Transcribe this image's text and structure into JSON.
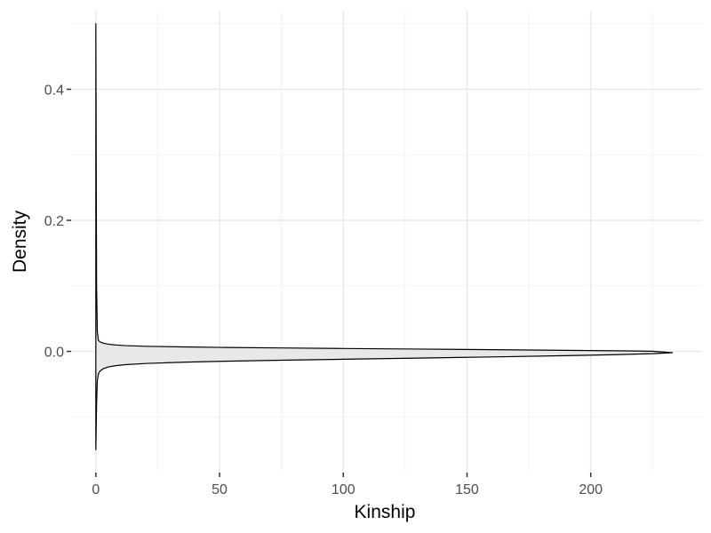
{
  "chart_data": {
    "type": "area",
    "title": "",
    "xlabel": "Kinship",
    "ylabel": "Density",
    "xlim": [
      -10,
      245
    ],
    "ylim": [
      -0.185,
      0.52
    ],
    "x_ticks": [
      0,
      50,
      100,
      150,
      200
    ],
    "y_ticks": [
      0.0,
      0.2,
      0.4
    ],
    "grid": true,
    "legend": "none",
    "series": [
      {
        "x": [
          0,
          0.3,
          0.6,
          1,
          1.5,
          2,
          3,
          5,
          8,
          12,
          20,
          35,
          50,
          75,
          100,
          130,
          160,
          190,
          210,
          225,
          233
        ],
        "y_upper": [
          0.5,
          0.1,
          0.03,
          0.017,
          0.015,
          0.014,
          0.0125,
          0.011,
          0.0098,
          0.0088,
          0.0078,
          0.0068,
          0.0061,
          0.0052,
          0.0044,
          0.0035,
          0.0026,
          0.0016,
          0.0009,
          0.0002,
          -0.002
        ],
        "y_lower": [
          -0.15,
          -0.08,
          -0.045,
          -0.035,
          -0.031,
          -0.029,
          -0.0265,
          -0.0237,
          -0.0218,
          -0.0203,
          -0.0185,
          -0.0165,
          -0.0152,
          -0.0135,
          -0.012,
          -0.0103,
          -0.0085,
          -0.0065,
          -0.005,
          -0.0035,
          -0.002
        ]
      }
    ],
    "colors": {
      "fill": "#e8e8e8",
      "stroke": "#000000",
      "grid_major": "#ebebeb",
      "grid_minor": "#f3f3f3",
      "tick": "#333333"
    }
  }
}
